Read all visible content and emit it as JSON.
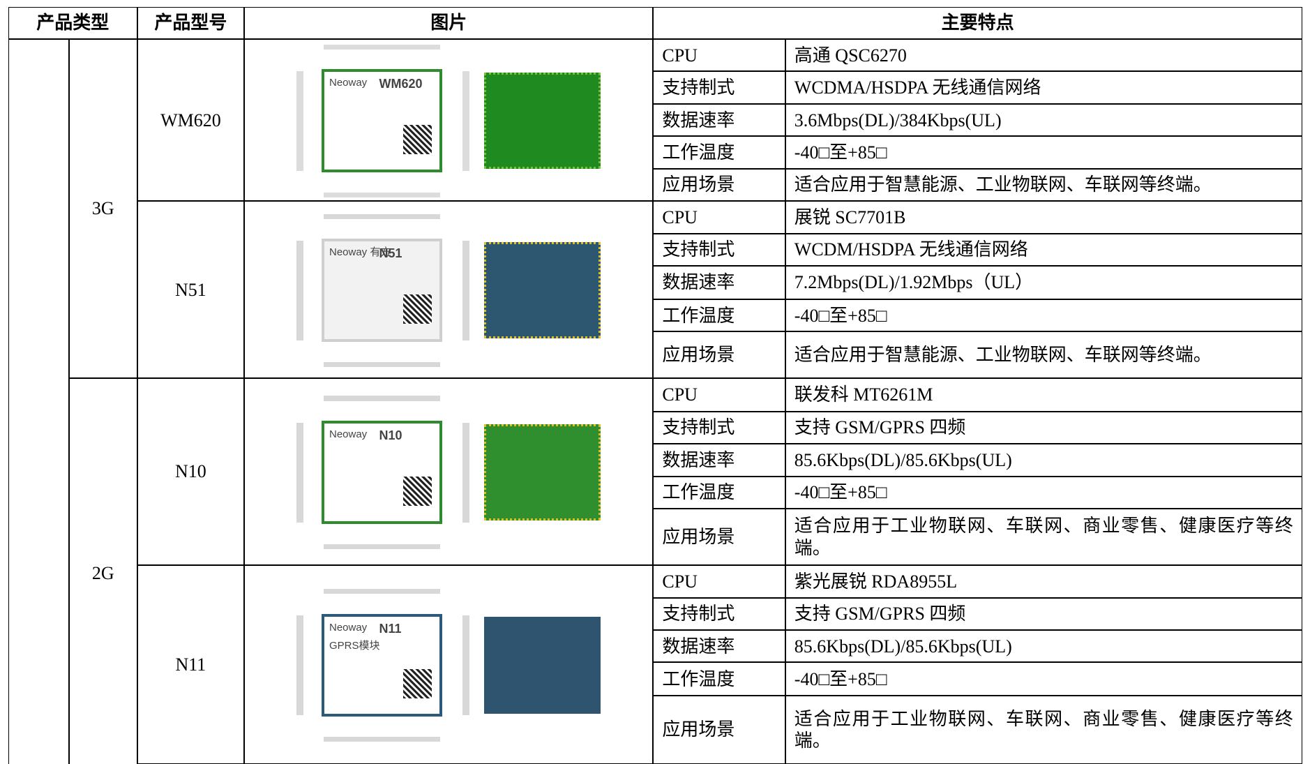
{
  "header": [
    "产品类型",
    "产品型号",
    "图片",
    "主要特点"
  ],
  "groups": [
    {
      "type": "3G",
      "products": [
        {
          "model": "WM620",
          "image_text": [
            "Neoway",
            "WM620"
          ],
          "features": [
            [
              "CPU",
              "高通 QSC6270"
            ],
            [
              "支持制式",
              "WCDMA/HSDPA 无线通信网络"
            ],
            [
              "数据速率",
              "3.6Mbps(DL)/384Kbps(UL)"
            ],
            [
              "工作温度",
              "-40□至+85□"
            ],
            [
              "应用场景",
              "适合应用于智慧能源、工业物联网、车联网等终端。"
            ]
          ]
        },
        {
          "model": "N51",
          "image_text": [
            "Neoway 有方",
            "N51"
          ],
          "features": [
            [
              "CPU",
              "展锐 SC7701B"
            ],
            [
              "支持制式",
              "WCDM/HSDPA 无线通信网络"
            ],
            [
              "数据速率",
              "7.2Mbps(DL)/1.92Mbps（UL）"
            ],
            [
              "工作温度",
              "-40□至+85□"
            ],
            [
              "应用场景",
              "适合应用于智慧能源、工业物联网、车联网等终端。"
            ]
          ]
        }
      ]
    },
    {
      "type": "2G",
      "products": [
        {
          "model": "N10",
          "image_text": [
            "Neoway",
            "N10"
          ],
          "features": [
            [
              "CPU",
              "联发科 MT6261M"
            ],
            [
              "支持制式",
              "支持 GSM/GPRS 四频"
            ],
            [
              "数据速率",
              "85.6Kbps(DL)/85.6Kbps(UL)"
            ],
            [
              "工作温度",
              "-40□至+85□"
            ],
            [
              "应用场景",
              "适合应用于工业物联网、车联网、商业零售、健康医疗等终端。"
            ]
          ]
        },
        {
          "model": "N11",
          "image_text": [
            "Neoway",
            "N11",
            "GPRS模块"
          ],
          "features": [
            [
              "CPU",
              "紫光展锐 RDA8955L"
            ],
            [
              "支持制式",
              "支持 GSM/GPRS 四频"
            ],
            [
              "数据速率",
              "85.6Kbps(DL)/85.6Kbps(UL)"
            ],
            [
              "工作温度",
              "-40□至+85□"
            ],
            [
              "应用场景",
              "适合应用于工业物联网、车联网、商业零售、健康医疗等终端。"
            ]
          ]
        }
      ]
    }
  ]
}
